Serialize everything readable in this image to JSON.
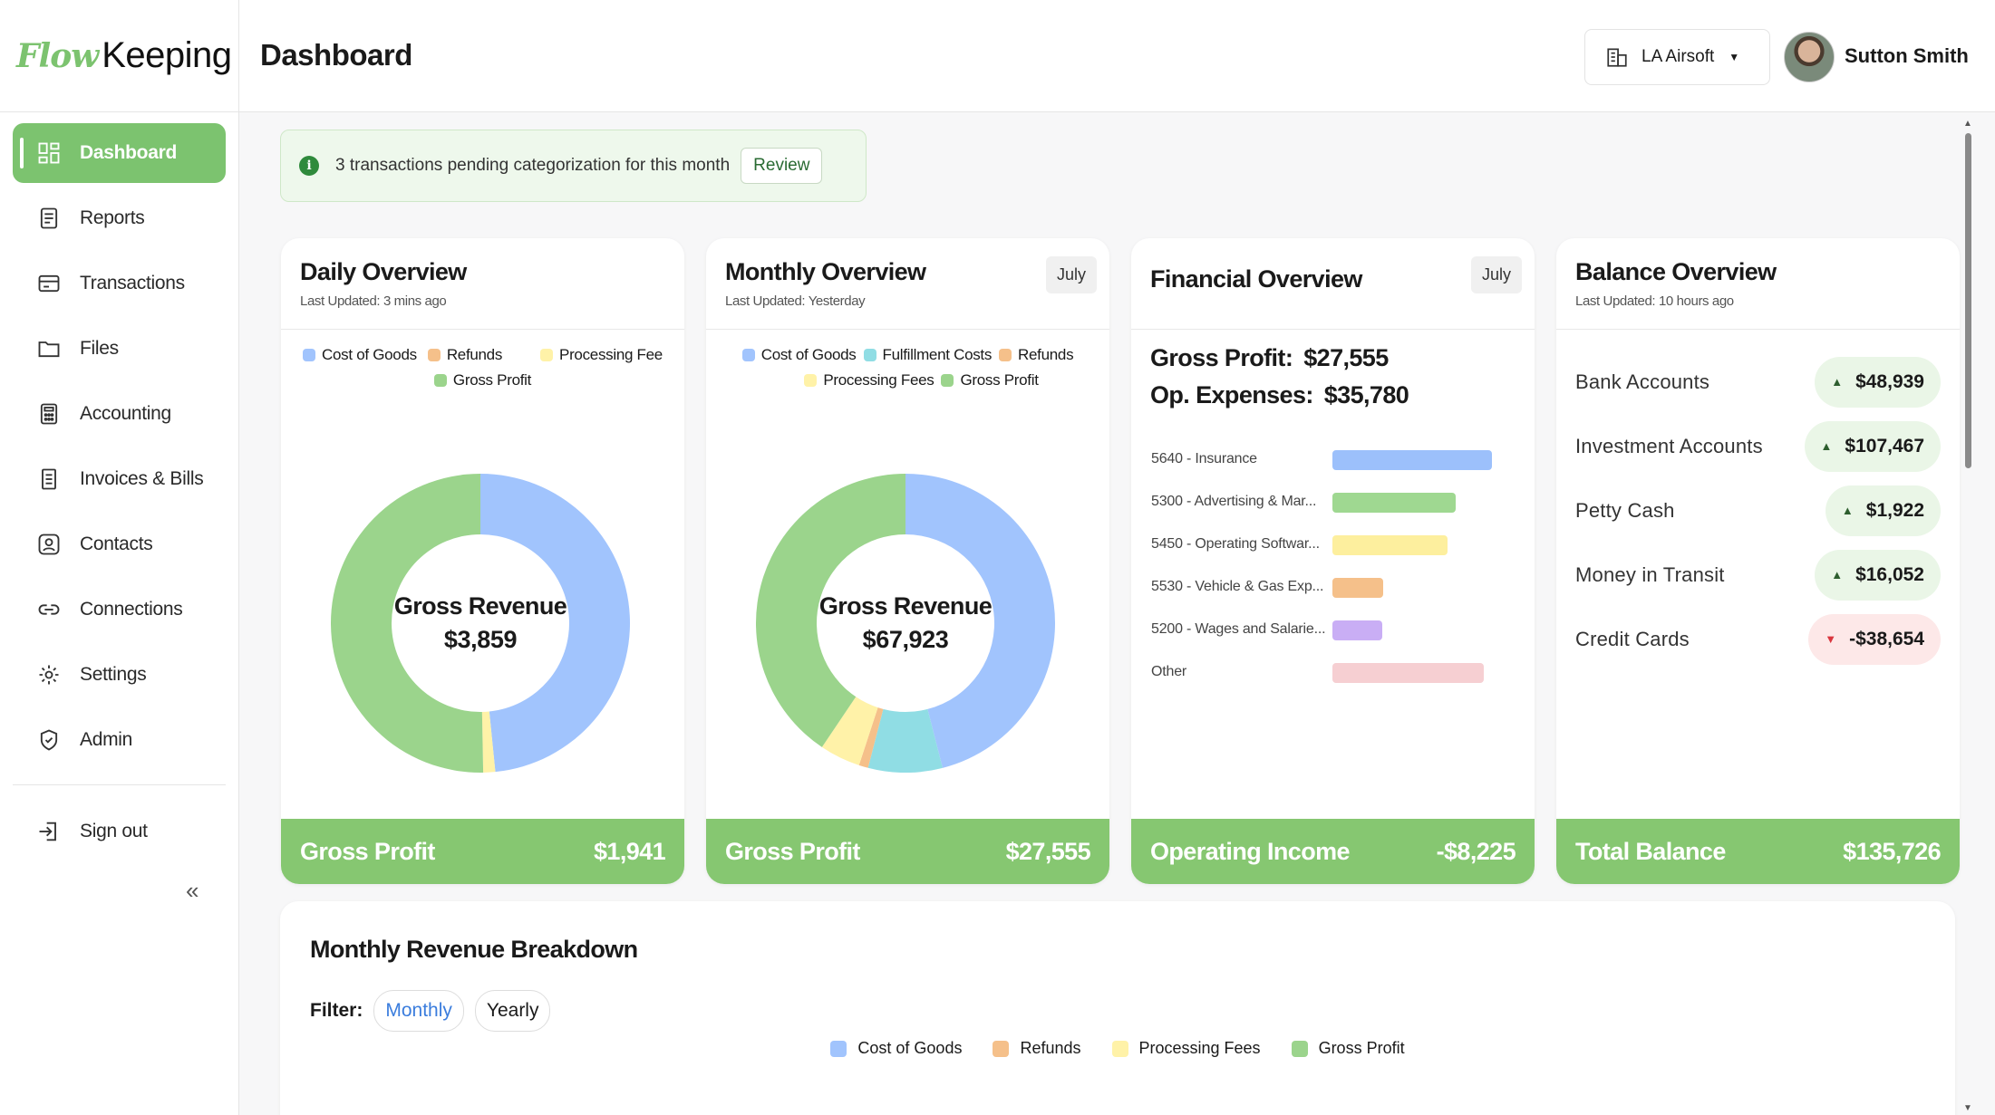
{
  "brand": {
    "part1": "Flow",
    "part2": "Keeping"
  },
  "header": {
    "title": "Dashboard",
    "company": "LA Airsoft",
    "user": "Sutton Smith"
  },
  "nav": {
    "items": [
      {
        "label": "Dashboard",
        "icon": "dashboard-icon",
        "active": true
      },
      {
        "label": "Reports",
        "icon": "reports-icon"
      },
      {
        "label": "Transactions",
        "icon": "transactions-icon"
      },
      {
        "label": "Files",
        "icon": "folder-icon"
      },
      {
        "label": "Accounting",
        "icon": "accounting-icon"
      },
      {
        "label": "Invoices & Bills",
        "icon": "invoice-icon"
      },
      {
        "label": "Contacts",
        "icon": "contact-icon"
      },
      {
        "label": "Connections",
        "icon": "link-icon"
      },
      {
        "label": "Settings",
        "icon": "gear-icon"
      },
      {
        "label": "Admin",
        "icon": "shield-icon"
      }
    ],
    "signout": "Sign out",
    "collapse": "«"
  },
  "alert": {
    "text": "3 transactions pending categorization for this month",
    "action": "Review"
  },
  "colors": {
    "cost": "#a1c4fd",
    "fulfillment": "#90dde4",
    "refunds": "#f5c08a",
    "processing": "#fff2a8",
    "gross": "#9bd48c",
    "accent": "#86c771"
  },
  "daily": {
    "title": "Daily Overview",
    "sub": "Last Updated: 3 mins ago",
    "legend": [
      "Cost of Goods",
      "Refunds",
      "Processing Fee",
      "Gross Profit"
    ],
    "center_label": "Gross Revenue",
    "center_value": "$3,859",
    "foot_label": "Gross Profit",
    "foot_value": "$1,941"
  },
  "monthly": {
    "title": "Monthly Overview",
    "sub": "Last Updated: Yesterday",
    "period": "July",
    "legend": [
      "Cost of Goods",
      "Fulfillment Costs",
      "Refunds",
      "Processing Fees",
      "Gross Profit"
    ],
    "center_label": "Gross Revenue",
    "center_value": "$67,923",
    "foot_label": "Gross Profit",
    "foot_value": "$27,555"
  },
  "financial": {
    "title": "Financial Overview",
    "period": "July",
    "gross_label": "Gross Profit:",
    "gross_value": "$27,555",
    "opex_label": "Op. Expenses:",
    "opex_value": "$35,780",
    "expenses": [
      {
        "label": "5640 - Insurance",
        "value": 1.0
      },
      {
        "label": "5300 - Advertising & Mar...",
        "value": 0.77
      },
      {
        "label": "5450 - Operating Softwar...",
        "value": 0.72
      },
      {
        "label": "5530 - Vehicle & Gas Exp...",
        "value": 0.32
      },
      {
        "label": "5200 - Wages and Salarie...",
        "value": 0.31
      },
      {
        "label": "Other",
        "value": 0.95
      }
    ],
    "foot_label": "Operating Income",
    "foot_value": "-$8,225"
  },
  "balance": {
    "title": "Balance Overview",
    "sub": "Last Updated: 10 hours ago",
    "accounts": [
      {
        "name": "Bank Accounts",
        "value": "$48,939",
        "trend": "up"
      },
      {
        "name": "Investment Accounts",
        "value": "$107,467",
        "trend": "up"
      },
      {
        "name": "Petty Cash",
        "value": "$1,922",
        "trend": "up"
      },
      {
        "name": "Money in Transit",
        "value": "$16,052",
        "trend": "up"
      },
      {
        "name": "Credit Cards",
        "value": "-$38,654",
        "trend": "down"
      }
    ],
    "foot_label": "Total Balance",
    "foot_value": "$135,726"
  },
  "chart_data": [
    {
      "type": "pie",
      "title": "Daily Overview",
      "categories": [
        "Cost of Goods",
        "Refunds",
        "Processing Fee",
        "Gross Profit"
      ],
      "values": [
        1868,
        0,
        50,
        1941
      ]
    },
    {
      "type": "pie",
      "title": "Monthly Overview",
      "categories": [
        "Cost of Goods",
        "Fulfillment Costs",
        "Refunds",
        "Processing Fees",
        "Gross Profit"
      ],
      "values": [
        31250,
        5450,
        680,
        2988,
        27555
      ]
    },
    {
      "type": "bar",
      "title": "Financial Overview",
      "categories": [
        "5640 - Insurance",
        "5300 - Advertising & Mar...",
        "5450 - Operating Softwar...",
        "5530 - Vehicle & Gas Exp...",
        "5200 - Wages and Salarie...",
        "Other"
      ],
      "values": [
        1.0,
        0.77,
        0.72,
        0.32,
        0.31,
        0.95
      ]
    }
  ],
  "breakdown": {
    "title": "Monthly Revenue Breakdown",
    "filter_label": "Filter:",
    "options": [
      "Monthly",
      "Yearly"
    ],
    "legend": [
      "Cost of Goods",
      "Refunds",
      "Processing Fees",
      "Gross Profit"
    ]
  },
  "scroll": {
    "up": "▲",
    "down": "▼"
  }
}
